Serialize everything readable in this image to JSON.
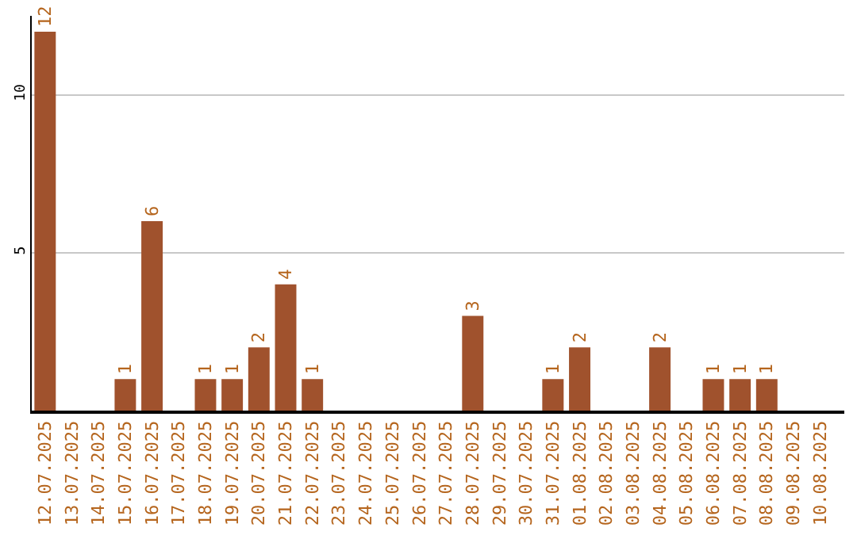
{
  "chart_data": {
    "type": "bar",
    "categories": [
      "12.07.2025",
      "13.07.2025",
      "14.07.2025",
      "15.07.2025",
      "16.07.2025",
      "17.07.2025",
      "18.07.2025",
      "19.07.2025",
      "20.07.2025",
      "21.07.2025",
      "22.07.2025",
      "23.07.2025",
      "24.07.2025",
      "25.07.2025",
      "26.07.2025",
      "27.07.2025",
      "28.07.2025",
      "29.07.2025",
      "30.07.2025",
      "31.07.2025",
      "01.08.2025",
      "02.08.2025",
      "03.08.2025",
      "04.08.2025",
      "05.08.2025",
      "06.08.2025",
      "07.08.2025",
      "08.08.2025",
      "09.08.2025",
      "10.08.2025"
    ],
    "values": [
      12,
      0,
      0,
      1,
      6,
      0,
      1,
      1,
      2,
      4,
      1,
      0,
      0,
      0,
      0,
      0,
      3,
      0,
      0,
      1,
      2,
      0,
      0,
      2,
      0,
      1,
      1,
      1,
      0,
      0
    ],
    "value_labels": [
      "12",
      null,
      null,
      "1",
      "6",
      null,
      "1",
      "1",
      "2",
      "4",
      "1",
      null,
      null,
      null,
      null,
      null,
      "3",
      null,
      null,
      "1",
      "2",
      null,
      null,
      "2",
      null,
      "1",
      "1",
      "1",
      null,
      null
    ],
    "color": "#a0522d",
    "ylim": [
      0,
      12.5
    ],
    "yticks": [
      5,
      10
    ],
    "grid": "y",
    "legend": false
  }
}
